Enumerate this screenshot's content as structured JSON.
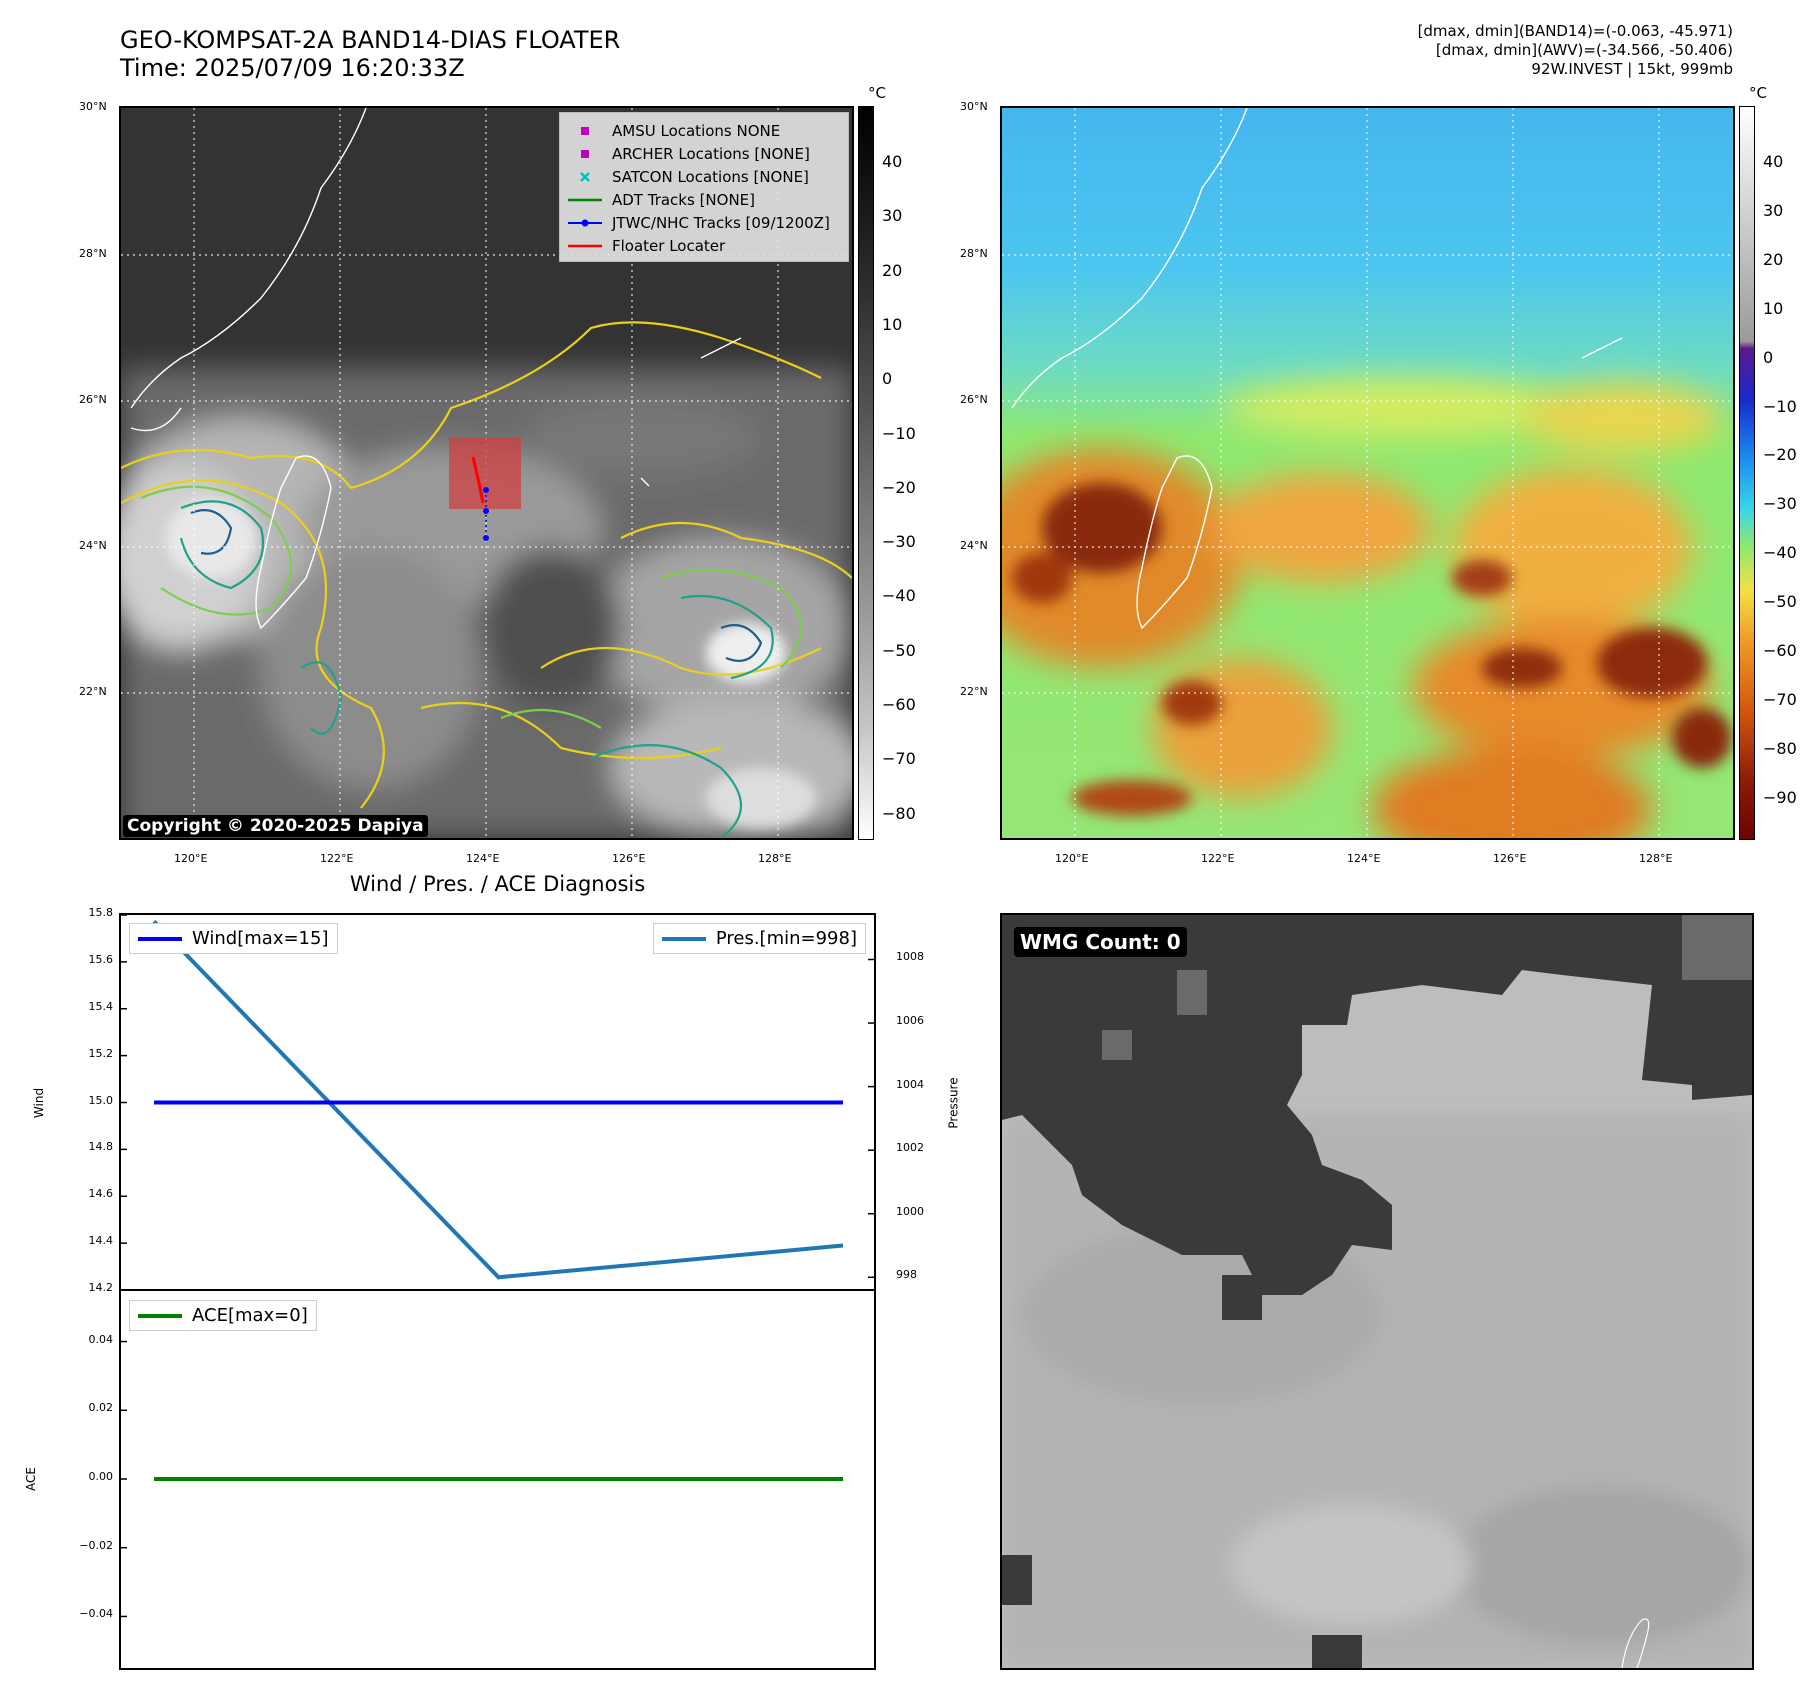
{
  "header": {
    "title_line1": "GEO-KOMPSAT-2A BAND14-DIAS FLOATER",
    "title_line2": "Time: 2025/07/09 16:20:33Z",
    "info_line1": "[dmax, dmin](BAND14)=(-0.063, -45.971)",
    "info_line2": "[dmax, dmin](AWV)=(-34.566, -50.406)",
    "info_line3": "92W.INVEST | 15kt, 999mb"
  },
  "map_axes": {
    "lat_labels": [
      "30°N",
      "28°N",
      "26°N",
      "24°N",
      "22°N"
    ],
    "lon_labels": [
      "120°E",
      "122°E",
      "124°E",
      "126°E",
      "128°E"
    ]
  },
  "ir_panel": {
    "colorbar_unit": "°C",
    "colorbar_ticks": [
      "40",
      "30",
      "20",
      "10",
      "0",
      "−10",
      "−20",
      "−30",
      "−40",
      "−50",
      "−60",
      "−70",
      "−80"
    ],
    "legend": [
      {
        "label": "AMSU Locations NONE",
        "symbol": "square",
        "color": "#bf00bf"
      },
      {
        "label": "ARCHER Locations [NONE]",
        "symbol": "square",
        "color": "#bf00bf"
      },
      {
        "label": "SATCON Locations [NONE]",
        "symbol": "x",
        "color": "#00bfbf"
      },
      {
        "label": "ADT Tracks [NONE]",
        "symbol": "line",
        "color": "#008000"
      },
      {
        "label": "JTWC/NHC Tracks [09/1200Z]",
        "symbol": "line-dot",
        "color": "#0000ff"
      },
      {
        "label": "Floater Locater",
        "symbol": "line",
        "color": "#ff0000"
      }
    ],
    "copyright": "Copyright © 2020-2025 Dapiya"
  },
  "awv_panel": {
    "colorbar_unit": "°C",
    "colorbar_ticks": [
      "40",
      "30",
      "20",
      "10",
      "0",
      "−10",
      "−20",
      "−30",
      "−40",
      "−50",
      "−60",
      "−70",
      "−80",
      "−90"
    ]
  },
  "chart_data": {
    "type": "line",
    "title": "Wind / Pres. / ACE Diagnosis",
    "x": [
      0,
      1,
      2
    ],
    "wind": {
      "ylabel": "Wind",
      "ylim": [
        14.2,
        15.8
      ],
      "yticks": [
        "15.8",
        "15.6",
        "15.4",
        "15.2",
        "15.0",
        "14.8",
        "14.6",
        "14.4",
        "14.2"
      ],
      "series": [
        {
          "name": "Wind[max=15]",
          "values": [
            15,
            15,
            15
          ],
          "color": "#0000ff"
        }
      ]
    },
    "pressure": {
      "ylabel": "Pressure",
      "ylim": [
        997.6,
        1009.4
      ],
      "yticks": [
        "1008",
        "1006",
        "1004",
        "1002",
        "1000",
        "998"
      ],
      "series": [
        {
          "name": "Pres.[min=998]",
          "values": [
            1009.2,
            998,
            999
          ],
          "color": "#1f77b4"
        }
      ]
    },
    "ace": {
      "ylabel": "ACE",
      "ylim": [
        -0.055,
        0.055
      ],
      "yticks": [
        "0.04",
        "0.02",
        "0.00",
        "−0.02",
        "−0.04"
      ],
      "series": [
        {
          "name": "ACE[max=0]",
          "values": [
            0,
            0,
            0
          ],
          "color": "#008000"
        }
      ]
    }
  },
  "wmg_panel": {
    "label": "WMG Count: 0"
  }
}
